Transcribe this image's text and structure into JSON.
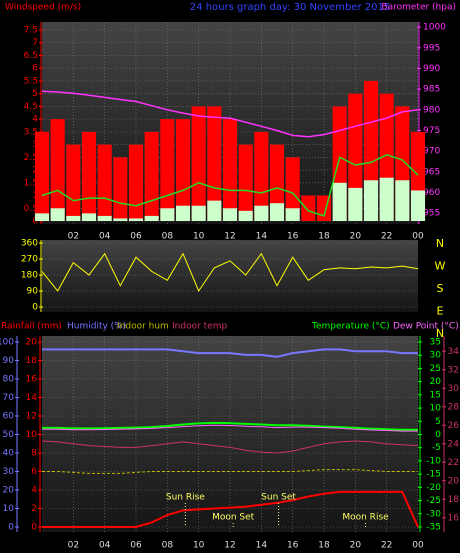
{
  "chart_data": [
    {
      "type": "combo",
      "title": "24 hours graph day: 30 November 2015",
      "y_label": "Windspeed (m/s)",
      "y2_label": "Barometer (hpa)",
      "x": [
        0,
        1,
        2,
        3,
        4,
        5,
        6,
        7,
        8,
        9,
        10,
        11,
        12,
        13,
        14,
        15,
        16,
        17,
        18,
        19,
        20,
        21,
        22,
        23,
        24
      ],
      "xlim": [
        0,
        24
      ],
      "xticks": [
        {
          "value": 2,
          "label": "02"
        },
        {
          "value": 4,
          "label": "04"
        },
        {
          "value": 6,
          "label": "06"
        },
        {
          "value": 8,
          "label": "08"
        },
        10,
        12,
        14,
        16,
        18,
        20,
        22,
        {
          "value": 24,
          "label": "00"
        }
      ],
      "ylim": [
        0,
        7.5
      ],
      "yticks": [
        0,
        0.5,
        1,
        1.5,
        2,
        2.5,
        3,
        3.5,
        4,
        4.5,
        5,
        5.5,
        6,
        6.5,
        7,
        7.5
      ],
      "y2lim": [
        953.1,
        999.3
      ],
      "y2ticks": [
        955,
        960,
        965,
        970,
        975,
        980,
        985,
        990,
        995,
        1000
      ],
      "grid": true,
      "series": [
        {
          "mark": "bar",
          "color": "#ff0000",
          "values": [
            3.5,
            4,
            3,
            3.5,
            3,
            2.5,
            3,
            3.5,
            4,
            4,
            4.5,
            4.5,
            4,
            3,
            3.5,
            3,
            2.5,
            1,
            1,
            4.5,
            5,
            5.5,
            5,
            4.5,
            3.5
          ]
        },
        {
          "mark": "bar",
          "color": "#ccffcc",
          "values": [
            0.3,
            0.5,
            0.2,
            0.3,
            0.2,
            0.1,
            0.1,
            0.2,
            0.5,
            0.6,
            0.6,
            0.8,
            0.5,
            0.4,
            0.6,
            0.7,
            0.5,
            0,
            0,
            1.5,
            1.3,
            1.6,
            1.7,
            1.6,
            1.2
          ]
        },
        {
          "mark": "line",
          "color": "#22dd22",
          "values": [
            1,
            1.2,
            0.8,
            0.9,
            0.9,
            0.7,
            0.6,
            0.8,
            1,
            1.2,
            1.5,
            1.3,
            1.2,
            1.2,
            1.1,
            1.3,
            1.1,
            0.4,
            0.2,
            2.5,
            2.2,
            2.3,
            2.6,
            2.4,
            1.8
          ]
        },
        {
          "mark": "line",
          "color": "#ff33ff",
          "axis": "y2",
          "values": [
            984.5,
            984.3,
            984,
            983.5,
            983,
            982.5,
            982,
            981,
            980,
            979.2,
            978.5,
            978.2,
            978,
            977,
            976,
            975,
            973.8,
            973.5,
            974,
            975,
            976,
            977,
            978,
            979.5,
            980
          ]
        }
      ]
    },
    {
      "type": "line",
      "x": [
        0,
        1,
        2,
        3,
        4,
        5,
        6,
        7,
        8,
        9,
        10,
        11,
        12,
        13,
        14,
        15,
        16,
        17,
        18,
        19,
        20,
        21,
        22,
        23,
        24
      ],
      "xlim": [
        0,
        24
      ],
      "ylim": [
        0,
        360
      ],
      "yticks": [
        0,
        90,
        180,
        270,
        360
      ],
      "grid": true,
      "color": "#ffff00",
      "compass": [
        "N",
        "W",
        "S",
        "E",
        "N"
      ],
      "values": [
        200,
        90,
        250,
        180,
        300,
        120,
        280,
        200,
        150,
        300,
        90,
        220,
        260,
        180,
        300,
        120,
        280,
        150,
        210,
        220,
        215,
        225,
        220,
        230,
        215
      ]
    },
    {
      "type": "combo",
      "x": [
        0,
        1,
        2,
        3,
        4,
        5,
        6,
        7,
        8,
        9,
        10,
        11,
        12,
        13,
        14,
        15,
        16,
        17,
        18,
        19,
        20,
        21,
        22,
        23,
        24
      ],
      "xlim": [
        0,
        24
      ],
      "xticks": [
        {
          "value": 2,
          "label": "02"
        },
        {
          "value": 4,
          "label": "04"
        },
        {
          "value": 6,
          "label": "06"
        },
        {
          "value": 8,
          "label": "08"
        },
        10,
        12,
        14,
        16,
        18,
        20,
        22,
        {
          "value": 24,
          "label": "00"
        }
      ],
      "ylim": [
        0,
        100
      ],
      "yticks": [
        0,
        10,
        20,
        30,
        40,
        50,
        60,
        70,
        80,
        90,
        100
      ],
      "y2lim": [
        -35,
        35
      ],
      "y2ticks": [
        -35,
        -30,
        -25,
        -20,
        -15,
        -10,
        -5,
        0,
        5,
        10,
        15,
        20,
        25,
        30,
        35
      ],
      "y3lim": [
        0,
        20
      ],
      "y3ticks": [
        0,
        2,
        4,
        6,
        8,
        10,
        12,
        14,
        16,
        18,
        20
      ],
      "y4lim": [
        15,
        35
      ],
      "y4ticks": [
        16,
        18,
        20,
        22,
        24,
        26,
        28,
        30,
        32,
        34
      ],
      "grid": true,
      "series": [
        {
          "name": "Rainfall (mm)",
          "color": "#ff0000",
          "axis": "y3",
          "width": 2,
          "values": [
            0,
            0,
            0,
            0,
            0,
            0,
            0,
            0.5,
            1.3,
            1.8,
            1.9,
            2,
            2.1,
            2.2,
            2.4,
            2.6,
            2.9,
            3.3,
            3.6,
            3.8,
            3.8,
            3.8,
            3.8,
            3.8,
            0
          ]
        },
        {
          "name": "Humidity (%)",
          "color": "#7777ff",
          "axis": "y",
          "width": 2,
          "values": [
            96,
            96,
            96,
            96,
            96,
            96,
            96,
            96,
            96,
            95,
            94,
            94,
            94,
            93,
            93,
            92,
            94,
            95,
            96,
            96,
            95,
            95,
            95,
            94,
            94
          ]
        },
        {
          "name": "Indoor hum",
          "color": "#bbbb00",
          "axis": "y",
          "width": 1,
          "dash": true,
          "values": [
            30,
            30,
            29.5,
            29,
            29,
            29,
            29.5,
            30,
            30,
            30,
            30,
            30,
            30,
            30,
            30,
            30,
            30,
            30.5,
            31,
            31,
            31,
            30.5,
            30,
            30,
            30
          ]
        },
        {
          "name": "Indoor temp",
          "color": "#cc3366",
          "axis": "y4",
          "width": 1,
          "values": [
            24.3,
            24.2,
            24,
            23.8,
            23.7,
            23.6,
            23.6,
            23.8,
            24,
            24.2,
            24,
            23.8,
            23.6,
            23.3,
            23.1,
            23,
            23.2,
            23.6,
            24,
            24.2,
            24.3,
            24.2,
            24,
            23.9,
            23.8
          ]
        },
        {
          "name": "Temperature (°C)",
          "color": "#00ff00",
          "axis": "y2",
          "width": 2,
          "values": [
            2.5,
            2.5,
            2.3,
            2.3,
            2.4,
            2.5,
            2.6,
            2.8,
            3.2,
            3.8,
            4.2,
            4.4,
            4.3,
            4,
            3.8,
            3.5,
            3.5,
            3.3,
            3,
            2.8,
            2.5,
            2.2,
            2,
            1.8,
            1.8
          ]
        },
        {
          "name": "Dew Point (°C)",
          "color": "#ff66ff",
          "axis": "y2",
          "width": 1,
          "values": [
            2,
            2,
            1.8,
            1.8,
            1.9,
            2,
            2.1,
            2.3,
            2.6,
            3,
            3.3,
            3.5,
            3.4,
            3.1,
            2.9,
            2.6,
            2.8,
            2.8,
            2.6,
            2.4,
            2,
            1.7,
            1.5,
            1.3,
            1.3
          ]
        }
      ],
      "annotations": [
        {
          "text": "Sun Rise",
          "x": 9.15
        },
        {
          "text": "Moon Set",
          "x": 12.2
        },
        {
          "text": "Sun Set",
          "x": 15.1
        },
        {
          "text": "Moon Rise",
          "x": 20.65
        }
      ]
    }
  ]
}
